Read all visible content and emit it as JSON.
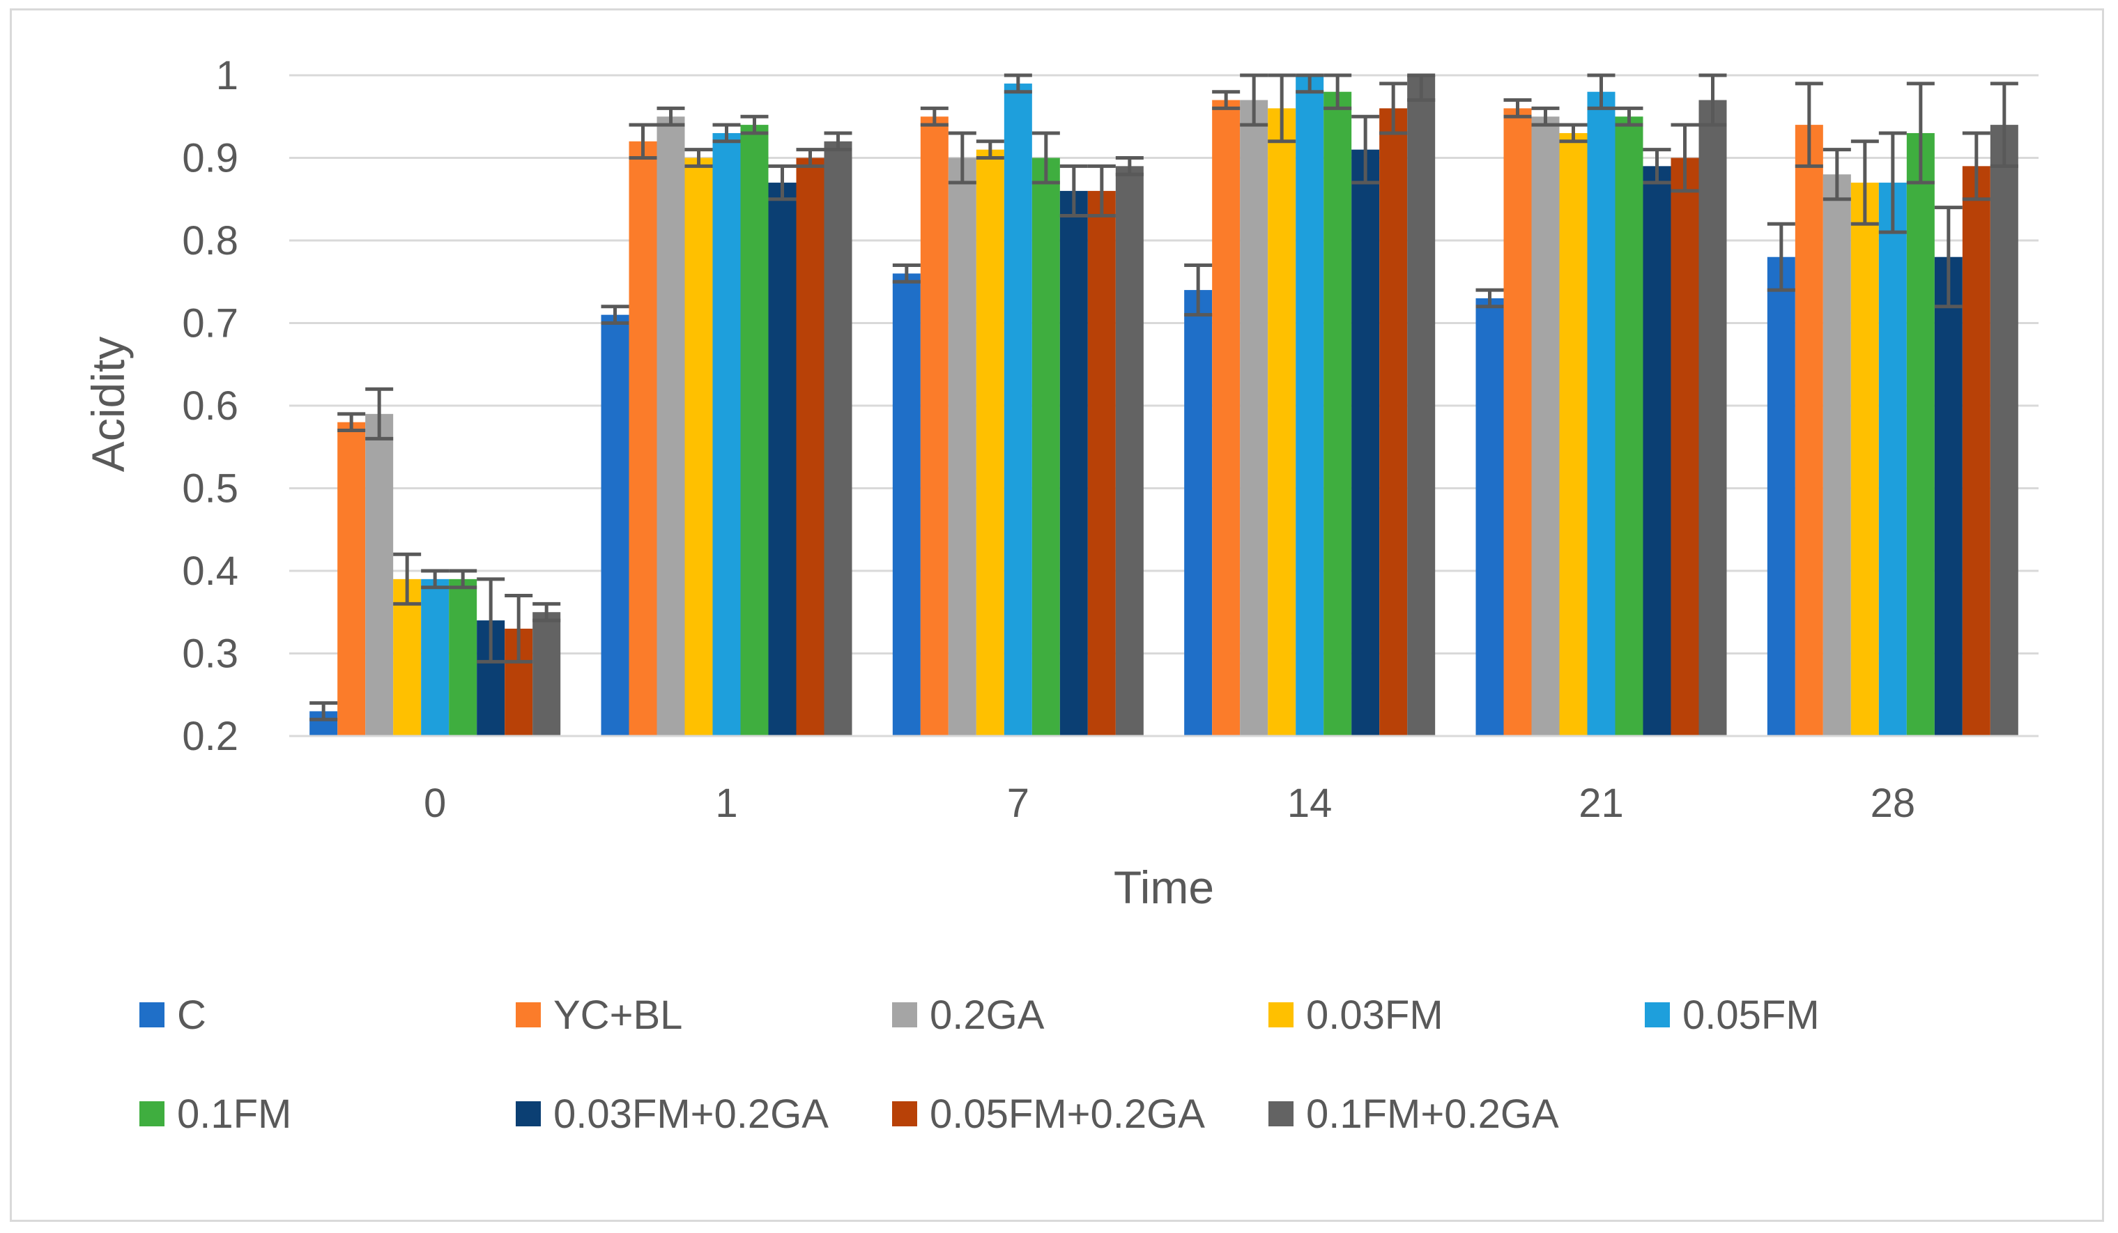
{
  "chart_data": {
    "type": "bar",
    "title": "",
    "xlabel": "Time",
    "ylabel": "Acidity",
    "ylim": [
      0.2,
      1.0
    ],
    "yticks": [
      0.2,
      0.3,
      0.4,
      0.5,
      0.6,
      0.7,
      0.8,
      0.9,
      1.0
    ],
    "ytick_labels": [
      "0.2",
      "0.3",
      "0.4",
      "0.5",
      "0.6",
      "0.7",
      "0.8",
      "0.9",
      "1"
    ],
    "grid": true,
    "legend_position": "bottom",
    "categories": [
      "0",
      "1",
      "7",
      "14",
      "21",
      "28"
    ],
    "series": [
      {
        "name": "C",
        "color": "#1f6fc8",
        "values": [
          0.23,
          0.71,
          0.76,
          0.74,
          0.73,
          0.78
        ],
        "errors": [
          0.01,
          0.01,
          0.01,
          0.03,
          0.01,
          0.04
        ]
      },
      {
        "name": "YC+BL",
        "color": "#fb7c2a",
        "values": [
          0.58,
          0.92,
          0.95,
          0.97,
          0.96,
          0.94
        ],
        "errors": [
          0.01,
          0.02,
          0.01,
          0.01,
          0.01,
          0.05
        ]
      },
      {
        "name": "0.2GA",
        "color": "#a5a5a5",
        "values": [
          0.59,
          0.95,
          0.9,
          0.97,
          0.95,
          0.88
        ],
        "errors": [
          0.03,
          0.01,
          0.03,
          0.03,
          0.01,
          0.03
        ]
      },
      {
        "name": "0.03FM",
        "color": "#ffc000",
        "values": [
          0.39,
          0.9,
          0.91,
          0.96,
          0.93,
          0.87
        ],
        "errors": [
          0.03,
          0.01,
          0.01,
          0.04,
          0.01,
          0.05
        ]
      },
      {
        "name": "0.05FM",
        "color": "#1e9fdc",
        "values": [
          0.39,
          0.93,
          0.99,
          1.0,
          0.98,
          0.87
        ],
        "errors": [
          0.01,
          0.01,
          0.01,
          0.02,
          0.02,
          0.06
        ]
      },
      {
        "name": "0.1FM",
        "color": "#3fae3f",
        "values": [
          0.39,
          0.94,
          0.9,
          0.98,
          0.95,
          0.93
        ],
        "errors": [
          0.01,
          0.01,
          0.03,
          0.02,
          0.01,
          0.06
        ]
      },
      {
        "name": "0.03FM+0.2GA",
        "color": "#0b3f73",
        "values": [
          0.34,
          0.87,
          0.86,
          0.91,
          0.89,
          0.78
        ],
        "errors": [
          0.05,
          0.02,
          0.03,
          0.04,
          0.02,
          0.06
        ]
      },
      {
        "name": "0.05FM+0.2GA",
        "color": "#b84107",
        "values": [
          0.33,
          0.9,
          0.86,
          0.96,
          0.9,
          0.89
        ],
        "errors": [
          0.04,
          0.01,
          0.03,
          0.03,
          0.04,
          0.04
        ]
      },
      {
        "name": "0.1FM+0.2GA",
        "color": "#636363",
        "values": [
          0.35,
          0.92,
          0.89,
          1.0,
          0.97,
          0.94
        ],
        "errors": [
          0.01,
          0.01,
          0.01,
          0.03,
          0.03,
          0.05
        ]
      }
    ]
  }
}
